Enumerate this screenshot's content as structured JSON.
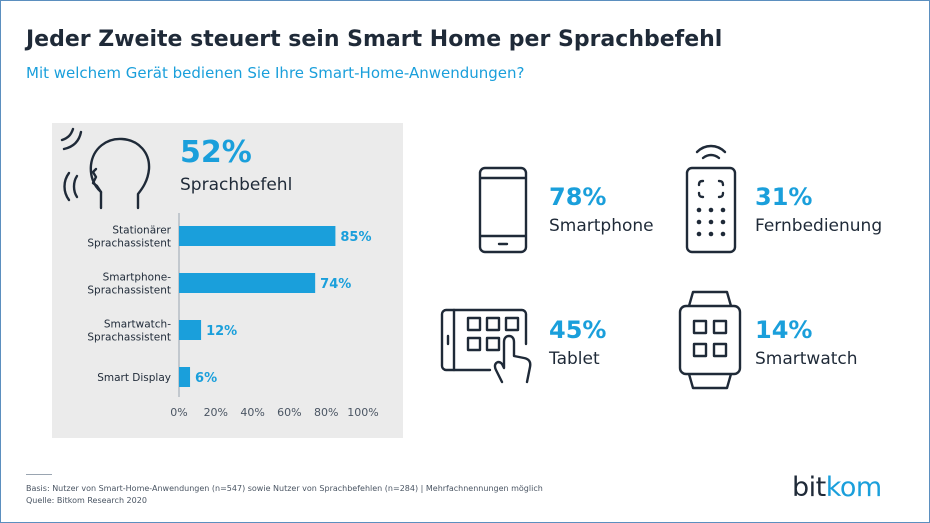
{
  "header": {
    "title": "Jeder Zweite steuert sein Smart Home per Sprachbefehl",
    "subtitle": "Mit welchem Gerät bedienen Sie Ihre Smart-Home-Anwendungen?"
  },
  "voice": {
    "percent": "52%",
    "label": "Sprachbefehl",
    "icon": "speaking-head-icon"
  },
  "chart_data": {
    "type": "bar",
    "orientation": "horizontal",
    "categories": [
      [
        "Stationärer",
        "Sprachassistent"
      ],
      [
        "Smartphone-",
        "Sprachassistent"
      ],
      [
        "Smartwatch-",
        "Sprachassistent"
      ],
      [
        "Smart Display"
      ]
    ],
    "values": [
      85,
      74,
      12,
      6
    ],
    "value_labels": [
      "85%",
      "74%",
      "12%",
      "6%"
    ],
    "xlim": [
      0,
      100
    ],
    "x_ticks": [
      "0%",
      "20%",
      "40%",
      "60%",
      "80%",
      "100%"
    ],
    "bar_color": "#1a9fdb",
    "grid": false
  },
  "devices": [
    {
      "percent": "78%",
      "label": "Smartphone",
      "icon": "smartphone-icon"
    },
    {
      "percent": "31%",
      "label": "Fernbedienung",
      "icon": "remote-control-icon"
    },
    {
      "percent": "45%",
      "label": "Tablet",
      "icon": "tablet-touch-icon"
    },
    {
      "percent": "14%",
      "label": "Smartwatch",
      "icon": "smartwatch-icon"
    }
  ],
  "footer": {
    "basis": "Basis: Nutzer von Smart-Home-Anwendungen (n=547) sowie Nutzer von Sprachbefehlen (n=284) | Mehrfachnennungen möglich",
    "source": "Quelle: Bitkom Research 2020"
  },
  "logo": {
    "part1": "bit",
    "part2": "kom"
  },
  "colors": {
    "accent": "#1a9fdb",
    "text": "#1f2a38",
    "panel": "#ebebeb"
  }
}
